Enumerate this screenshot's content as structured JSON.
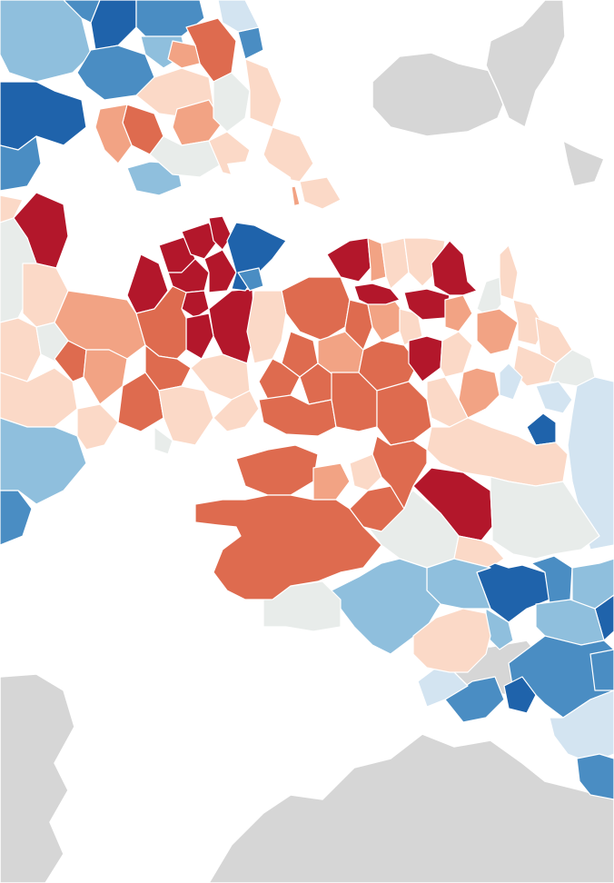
{
  "map": {
    "type": "choropleth",
    "background_color": "#ffffff",
    "palette": {
      "strong_red": "#b3172b",
      "red": "#de6b4f",
      "light_red": "#f2a384",
      "pale_red": "#fbd9c7",
      "neutral": "#e8ecea",
      "pale_blue": "#d3e4f1",
      "light_blue": "#8fbfdd",
      "blue": "#4a8dc3",
      "strong_blue": "#1f63ab",
      "outside_area": "#d6d6d6"
    }
  }
}
